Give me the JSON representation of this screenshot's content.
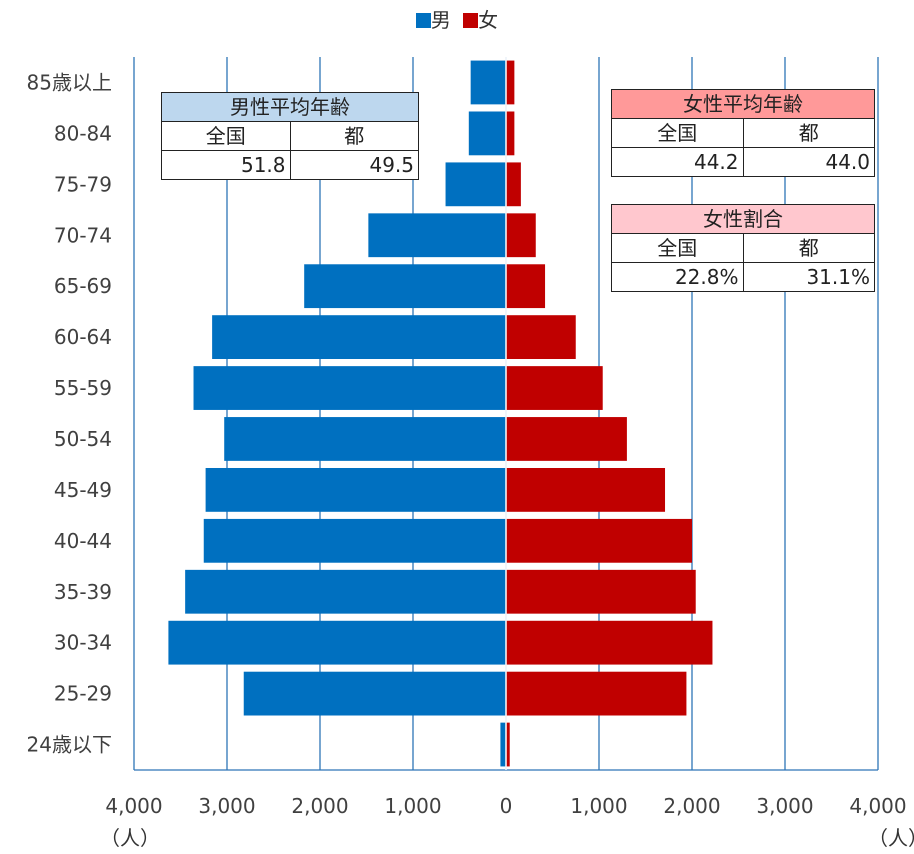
{
  "legend": {
    "male_label": "男",
    "female_label": "女",
    "male_color": "#0070C0",
    "female_color": "#C00000"
  },
  "units": {
    "left": "（人）",
    "right": "（人）"
  },
  "male_table": {
    "title": "男性平均年齢",
    "header_color": "#BDD7EE",
    "col1": "全国",
    "col2": "都",
    "val1": "51.8",
    "val2": "49.5"
  },
  "female_table": {
    "title": "女性平均年齢",
    "header_color": "#FF9999",
    "col1": "全国",
    "col2": "都",
    "val1": "44.2",
    "val2": "44.0"
  },
  "ratio_table": {
    "title": "女性割合",
    "header_color": "#FFC7CE",
    "col1": "全国",
    "col2": "都",
    "val1": "22.8%",
    "val2": "31.1%"
  },
  "chart_data": {
    "type": "bar",
    "orientation": "horizontal-pyramid",
    "categories": [
      "85歳以上",
      "80-84",
      "75-79",
      "70-74",
      "65-69",
      "60-64",
      "55-59",
      "50-54",
      "45-49",
      "40-44",
      "35-39",
      "30-34",
      "25-29",
      "24歳以下"
    ],
    "series": [
      {
        "name": "男",
        "color": "#0070C0",
        "values": [
          380,
          400,
          650,
          1480,
          2170,
          3160,
          3360,
          3030,
          3230,
          3250,
          3450,
          3630,
          2820,
          60
        ]
      },
      {
        "name": "女",
        "color": "#C00000",
        "values": [
          90,
          90,
          160,
          320,
          420,
          750,
          1040,
          1300,
          1710,
          2000,
          2040,
          2220,
          1940,
          40
        ]
      }
    ],
    "xlim": [
      -4000,
      4000
    ],
    "xticks": [
      "4,000",
      "3,000",
      "2,000",
      "1,000",
      "0",
      "1,000",
      "2,000",
      "3,000",
      "4,000"
    ],
    "grid": true,
    "legend_position": "top-center"
  }
}
